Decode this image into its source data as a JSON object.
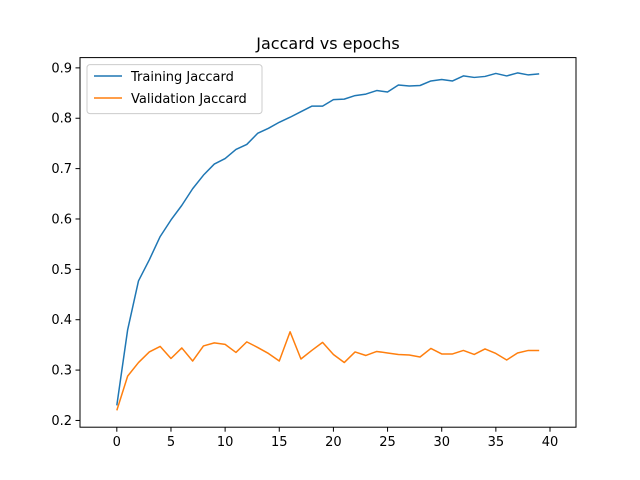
{
  "chart_data": {
    "type": "line",
    "title": "Jaccard vs epochs",
    "xlabel": "",
    "ylabel": "",
    "xlim": [
      -3.4,
      42.4
    ],
    "ylim": [
      0.1866,
      0.9204
    ],
    "xticks": [
      0,
      5,
      10,
      15,
      20,
      25,
      30,
      35,
      40
    ],
    "yticks": [
      0.2,
      0.3,
      0.4,
      0.5,
      0.6,
      0.7,
      0.8,
      0.9
    ],
    "grid": false,
    "legend_position": "upper-left",
    "x": [
      0,
      1,
      2,
      3,
      4,
      5,
      6,
      7,
      8,
      9,
      10,
      11,
      12,
      13,
      14,
      15,
      16,
      17,
      18,
      19,
      20,
      21,
      22,
      23,
      24,
      25,
      26,
      27,
      28,
      29,
      30,
      31,
      32,
      33,
      34,
      35,
      36,
      37,
      38,
      39
    ],
    "series": [
      {
        "name": "Training Jaccard",
        "color": "#1f77b4",
        "values": [
          0.23,
          0.38,
          0.477,
          0.519,
          0.565,
          0.598,
          0.627,
          0.66,
          0.687,
          0.709,
          0.72,
          0.738,
          0.748,
          0.77,
          0.78,
          0.792,
          0.802,
          0.813,
          0.824,
          0.824,
          0.837,
          0.838,
          0.845,
          0.848,
          0.855,
          0.852,
          0.866,
          0.864,
          0.865,
          0.874,
          0.877,
          0.874,
          0.884,
          0.881,
          0.883,
          0.889,
          0.884,
          0.89,
          0.886,
          0.888
        ]
      },
      {
        "name": "Validation Jaccard",
        "color": "#ff7f0e",
        "values": [
          0.22,
          0.288,
          0.315,
          0.336,
          0.347,
          0.323,
          0.344,
          0.318,
          0.348,
          0.354,
          0.351,
          0.335,
          0.356,
          0.345,
          0.333,
          0.318,
          0.376,
          0.322,
          0.339,
          0.355,
          0.331,
          0.315,
          0.336,
          0.329,
          0.337,
          0.334,
          0.331,
          0.33,
          0.326,
          0.343,
          0.332,
          0.332,
          0.339,
          0.331,
          0.342,
          0.333,
          0.32,
          0.334,
          0.339,
          0.339
        ]
      }
    ]
  }
}
